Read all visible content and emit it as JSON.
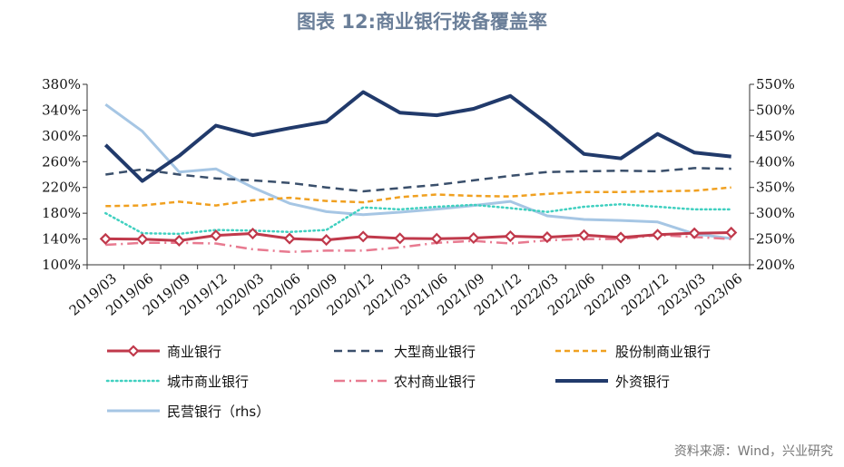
{
  "title": "图表 12:商业银行拨备覆盖率",
  "source": "资料来源：Wind，兴业研究",
  "chart_data": {
    "type": "line",
    "x": [
      "2019/03",
      "2019/06",
      "2019/09",
      "2019/12",
      "2020/03",
      "2020/06",
      "2020/09",
      "2020/12",
      "2021/03",
      "2021/06",
      "2021/09",
      "2021/12",
      "2022/03",
      "2022/06",
      "2022/09",
      "2022/12",
      "2023/03",
      "2023/06"
    ],
    "y_left": {
      "min": 100,
      "max": 380,
      "step": 40,
      "suffix": "%",
      "tick_labels": [
        "100%",
        "140%",
        "180%",
        "220%",
        "260%",
        "300%",
        "340%",
        "380%"
      ]
    },
    "y_right": {
      "min": 200,
      "max": 550,
      "step": 50,
      "suffix": "%",
      "tick_labels": [
        "200%",
        "250%",
        "300%",
        "350%",
        "400%",
        "450%",
        "500%",
        "550%"
      ]
    },
    "colors": {
      "commercial": "#c0394b",
      "large": "#3a4f6b",
      "joint": "#f0a020",
      "city": "#40d0c0",
      "rural": "#e87a90",
      "foreign": "#213a6b",
      "private": "#a6c6e4"
    },
    "series": [
      {
        "key": "commercial",
        "name": "商业银行",
        "axis": "left",
        "style": "solid-diamond",
        "values": [
          140.2,
          139.7,
          137.4,
          145.6,
          148.5,
          140.7,
          138.6,
          143.8,
          141.0,
          140.5,
          141.5,
          144.3,
          142.8,
          146.0,
          142.3,
          146.7,
          149.0,
          150.0
        ]
      },
      {
        "key": "large",
        "name": "大型商业银行",
        "axis": "left",
        "style": "dash",
        "values": [
          240,
          248,
          240,
          234,
          231,
          227,
          220,
          214,
          219,
          224,
          231,
          238,
          244,
          245,
          246,
          245,
          250,
          249
        ]
      },
      {
        "key": "joint",
        "name": "股份制商业银行",
        "axis": "left",
        "style": "dash-short",
        "values": [
          191,
          192,
          198,
          192,
          200,
          204,
          199,
          197,
          205,
          209,
          207,
          206,
          210,
          213,
          213,
          214,
          215,
          220
        ]
      },
      {
        "key": "city",
        "name": "城市商业银行",
        "axis": "left",
        "style": "dot",
        "values": [
          180,
          149,
          148,
          154,
          153,
          151,
          154,
          189,
          186,
          190,
          193,
          188,
          182,
          190,
          194,
          190,
          186,
          186
        ]
      },
      {
        "key": "rural",
        "name": "农村商业银行",
        "axis": "left",
        "style": "dash-dot",
        "values": [
          131,
          134,
          134,
          133,
          124,
          120,
          122,
          122,
          127,
          134,
          137,
          133,
          138,
          140,
          140,
          146,
          143,
          140
        ]
      },
      {
        "key": "foreign",
        "name": "外资银行",
        "axis": "left",
        "style": "solid-thick",
        "values": [
          286,
          230,
          269,
          316,
          301,
          312,
          322,
          368,
          336,
          332,
          342,
          362,
          319,
          272,
          265,
          303,
          274,
          268
        ]
      },
      {
        "key": "private",
        "name": "民营银行（rhs）",
        "axis": "right",
        "style": "solid",
        "values": [
          511,
          459,
          380,
          386,
          350,
          319,
          303,
          297,
          302,
          308,
          315,
          323,
          295,
          288,
          286,
          283,
          260,
          251
        ]
      }
    ]
  }
}
